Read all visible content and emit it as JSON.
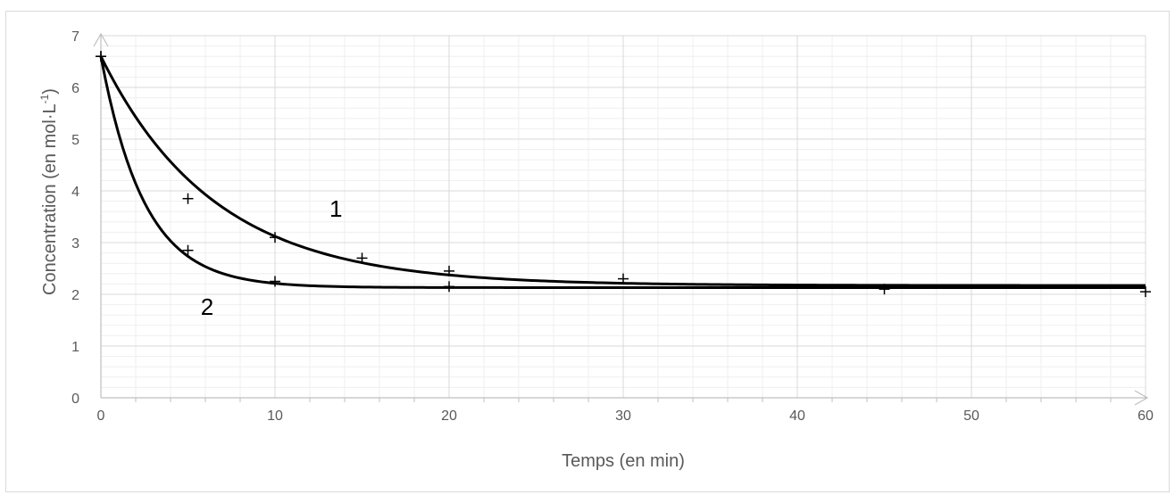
{
  "chart_data": {
    "type": "scatter",
    "title": "",
    "xlabel": "Temps (en min)",
    "ylabel_main": "Concentration (en mol·L",
    "ylabel_sup": "-1",
    "ylabel_close": ")",
    "xlim": [
      0,
      60
    ],
    "ylim": [
      0,
      7
    ],
    "x_ticks": [
      0,
      10,
      20,
      30,
      40,
      50,
      60
    ],
    "y_ticks": [
      0,
      1,
      2,
      3,
      4,
      5,
      6,
      7
    ],
    "x_tick_labels": [
      "0",
      "10",
      "20",
      "30",
      "40",
      "50",
      "60"
    ],
    "y_tick_labels": [
      "0",
      "1",
      "2",
      "3",
      "4",
      "5",
      "6",
      "7"
    ],
    "grid": true,
    "series": [
      {
        "name": "1",
        "points": [
          [
            0,
            6.6
          ],
          [
            5,
            3.85
          ],
          [
            10,
            3.1
          ],
          [
            15,
            2.7
          ],
          [
            20,
            2.45
          ],
          [
            30,
            2.3
          ]
        ],
        "curve": {
          "c_inf": 2.17,
          "c0": 6.6,
          "tau": 6.5
        }
      },
      {
        "name": "2",
        "points": [
          [
            0,
            6.6
          ],
          [
            5,
            2.85
          ],
          [
            10,
            2.25
          ],
          [
            20,
            2.15
          ],
          [
            45,
            2.1
          ],
          [
            60,
            2.05
          ]
        ],
        "curve": {
          "c_inf": 2.13,
          "c0": 6.6,
          "tau": 2.5
        }
      }
    ],
    "curve_labels": [
      {
        "text": "1",
        "x": 13.5,
        "y": 3.5
      },
      {
        "text": "2",
        "x": 6.1,
        "y": 1.6
      }
    ],
    "colors": {
      "curve": "#000000",
      "grid_major": "#d9d9d9",
      "grid_minor": "#efefef",
      "axis": "#bfbfbf"
    }
  }
}
